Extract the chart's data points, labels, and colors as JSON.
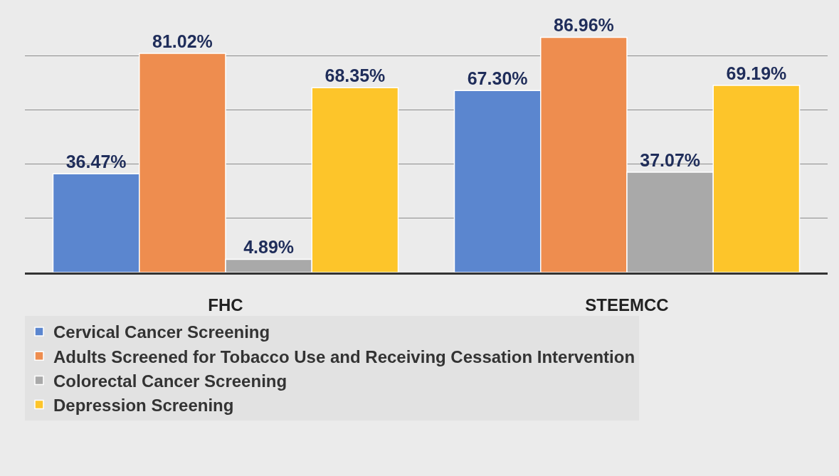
{
  "chart_data": {
    "type": "bar",
    "categories": [
      "FHC",
      "STEEMCC"
    ],
    "series": [
      {
        "name": "Cervical Cancer Screening",
        "color": "#5b86cf",
        "values": [
          36.47,
          67.3
        ],
        "value_labels": [
          "36.47%",
          "67.30%"
        ]
      },
      {
        "name": "Adults Screened for Tobacco Use and Receiving Cessation Intervention",
        "color": "#ee8d4f",
        "values": [
          81.02,
          86.96
        ],
        "value_labels": [
          "81.02%",
          "86.96%"
        ]
      },
      {
        "name": "Colorectal Cancer Screening",
        "color": "#a9a9a9",
        "values": [
          4.89,
          37.07
        ],
        "value_labels": [
          "4.89%",
          "37.07%"
        ]
      },
      {
        "name": "Depression Screening",
        "color": "#fdc52a",
        "values": [
          68.35,
          69.19
        ],
        "value_labels": [
          "68.35%",
          "69.19%"
        ]
      }
    ],
    "yticks": [
      {
        "value": 0,
        "label": null
      },
      {
        "value": 20,
        "label": null
      },
      {
        "value": 40,
        "label": null
      },
      {
        "value": 60,
        "label": null
      },
      {
        "value": 80,
        "label": null
      }
    ],
    "grid": "y",
    "legend": "bottom",
    "tick_labels": "x"
  }
}
